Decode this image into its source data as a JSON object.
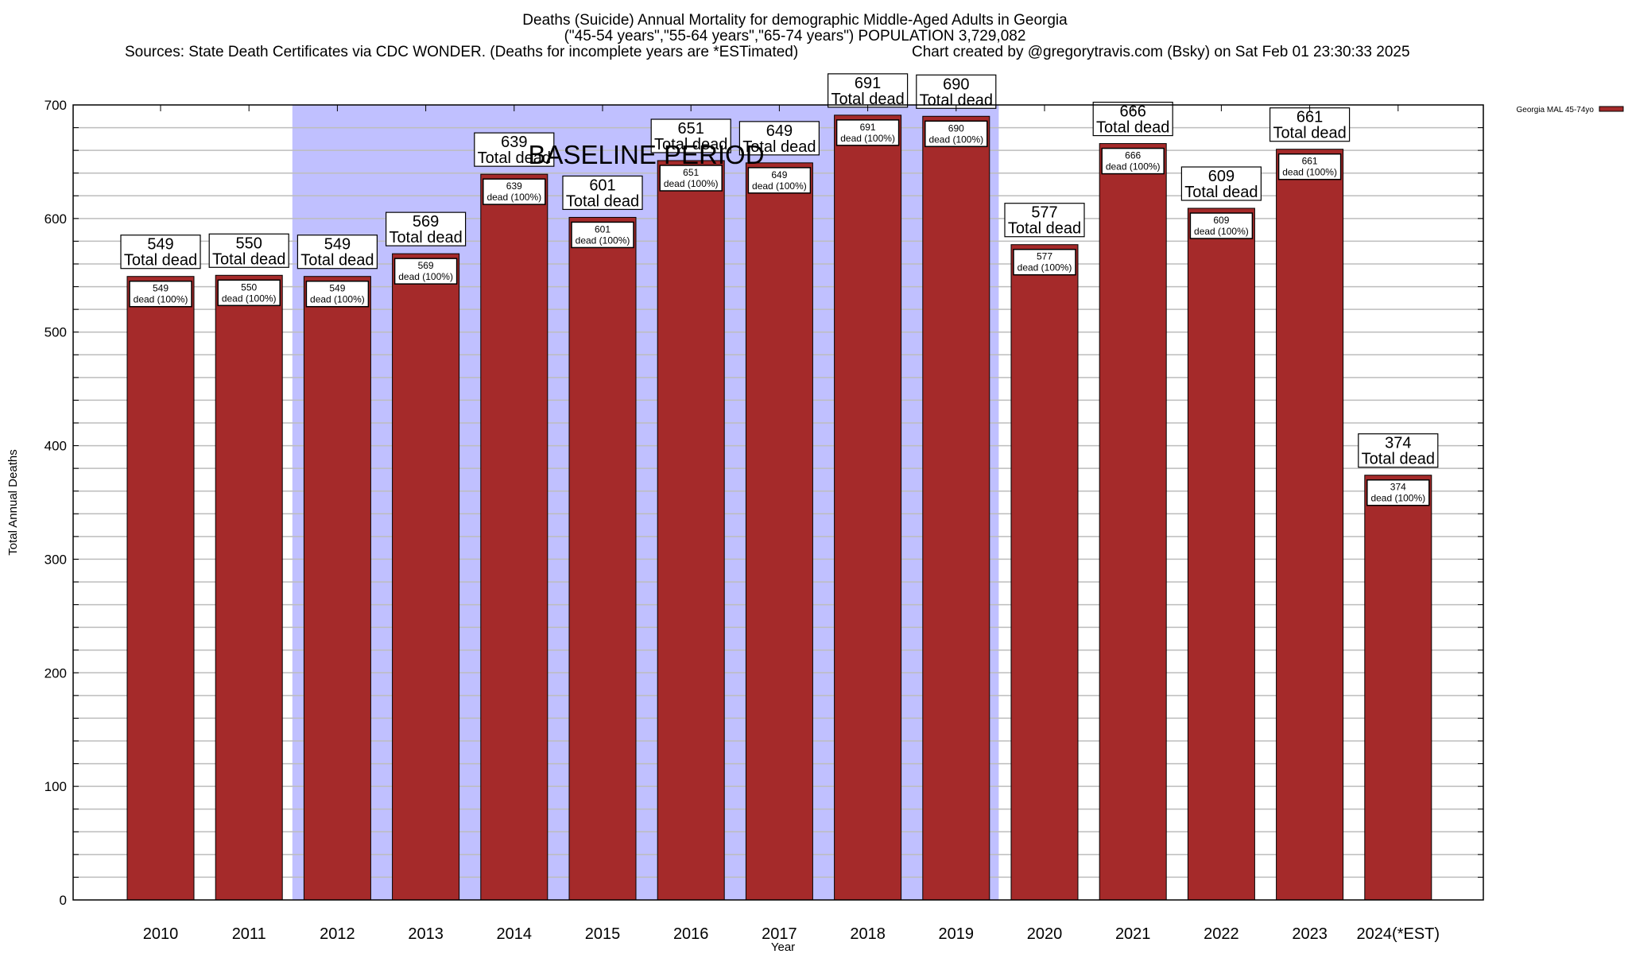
{
  "chart_data": {
    "type": "bar",
    "title_lines": [
      "Deaths (Suicide) Annual Mortality for demographic Middle-Aged Adults in Georgia",
      "(\"45-54 years\",\"55-64 years\",\"65-74 years\") POPULATION 3,729,082"
    ],
    "source_left": "Sources: State Death Certificates via CDC WONDER. (Deaths for incomplete years are *ESTimated)",
    "source_right": "Chart created by @gregorytravis.com (Bsky) on Sat Feb 01 23:30:33 2025",
    "xlabel": "Year",
    "ylabel": "Total Annual Deaths",
    "ylim": [
      0,
      700
    ],
    "yticks": [
      0,
      100,
      200,
      300,
      400,
      500,
      600,
      700
    ],
    "minor_grid_step": 20,
    "grid": true,
    "categories": [
      "2010",
      "2011",
      "2012",
      "2013",
      "2014",
      "2015",
      "2016",
      "2017",
      "2018",
      "2019",
      "2020",
      "2021",
      "2022",
      "2023",
      "2024(*EST)"
    ],
    "series": [
      {
        "name": "Georgia MAL 45-74yo",
        "color": "#a52a2a",
        "values": [
          549,
          550,
          549,
          569,
          639,
          601,
          651,
          649,
          691,
          690,
          577,
          666,
          609,
          661,
          374
        ]
      }
    ],
    "total_label_suffix": "Total dead",
    "inner_label_suffix": "dead (100%)",
    "baseline_period": {
      "label": "BASELINE PERIOD",
      "from": "2012",
      "to": "2019",
      "color": "#c0c0ff"
    },
    "legend": {
      "placement": "top-right",
      "entries": [
        "Georgia MAL 45-74yo"
      ]
    }
  }
}
